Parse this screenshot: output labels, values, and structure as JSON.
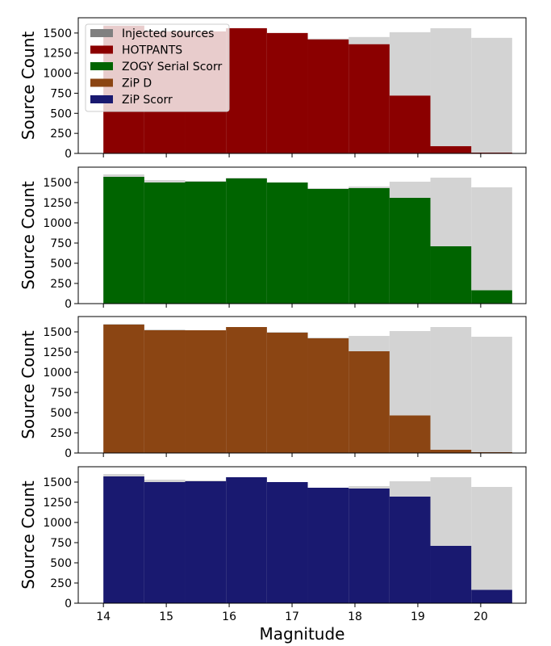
{
  "chart_data": {
    "type": "bar",
    "x_edges": [
      14.0,
      14.65,
      15.3,
      15.95,
      16.6,
      17.25,
      17.9,
      18.55,
      19.2,
      19.85,
      20.5
    ],
    "xlim": [
      13.6,
      20.72
    ],
    "x_ticks": [
      14,
      15,
      16,
      17,
      18,
      19,
      20
    ],
    "xlabel": "Magnitude",
    "ylim": [
      0,
      1690
    ],
    "y_ticks": [
      0,
      250,
      500,
      750,
      1000,
      1250,
      1500
    ],
    "ylabel": "Source Count",
    "injected": {
      "name": "Injected sources",
      "color": "#d3d3d3",
      "legend_color": "#808080",
      "values": [
        1600,
        1530,
        1520,
        1560,
        1500,
        1430,
        1450,
        1510,
        1560,
        1440
      ]
    },
    "legend": {
      "placement": "top-left",
      "entries": [
        {
          "label": "Injected sources",
          "color": "#808080"
        },
        {
          "label": "HOTPANTS",
          "color": "#8b0000"
        },
        {
          "label": "ZOGY Serial Scorr",
          "color": "#006400"
        },
        {
          "label": "ZiP D",
          "color": "#8b4513"
        },
        {
          "label": "ZiP Scorr",
          "color": "#191970"
        }
      ]
    },
    "panels": [
      {
        "name": "HOTPANTS",
        "color": "#8b0000",
        "values": [
          1590,
          1520,
          1520,
          1560,
          1500,
          1420,
          1360,
          720,
          90,
          10
        ]
      },
      {
        "name": "ZOGY Serial Scorr",
        "color": "#006400",
        "values": [
          1570,
          1500,
          1510,
          1550,
          1500,
          1420,
          1430,
          1310,
          710,
          165
        ]
      },
      {
        "name": "ZiP D",
        "color": "#8b4513",
        "values": [
          1590,
          1520,
          1520,
          1560,
          1490,
          1420,
          1260,
          465,
          40,
          10
        ]
      },
      {
        "name": "ZiP Scorr",
        "color": "#191970",
        "values": [
          1570,
          1500,
          1510,
          1560,
          1500,
          1430,
          1420,
          1320,
          710,
          165
        ]
      }
    ]
  }
}
